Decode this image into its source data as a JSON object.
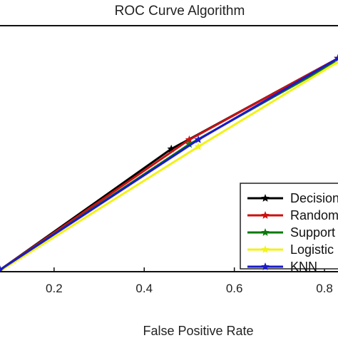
{
  "chart_data": {
    "type": "line",
    "title": "ROC Curve Algorithm",
    "xlabel": "False Positive Rate",
    "ylabel": "",
    "xlim": [
      0.08,
      0.83
    ],
    "ylim": [
      0.0,
      1.0
    ],
    "x_ticks": [
      "0.2",
      "0.4",
      "0.6",
      "0.8"
    ],
    "x_tick_values": [
      0.2,
      0.4,
      0.6,
      0.8
    ],
    "grid": false,
    "legend_position": "bottom-right",
    "series": [
      {
        "name": "Decision",
        "color": "#000000",
        "marker": "star",
        "points": [
          [
            0.08,
            0.06
          ],
          [
            0.46,
            0.58
          ],
          [
            0.83,
            0.97
          ]
        ]
      },
      {
        "name": "Random",
        "color": "#cc1111",
        "marker": "star",
        "points": [
          [
            0.08,
            0.06
          ],
          [
            0.5,
            0.62
          ],
          [
            0.83,
            0.97
          ]
        ]
      },
      {
        "name": "Support",
        "color": "#0a7a0a",
        "marker": "star",
        "points": [
          [
            0.08,
            0.06
          ],
          [
            0.5,
            0.6
          ],
          [
            0.83,
            0.96
          ]
        ]
      },
      {
        "name": "Logistic",
        "color": "#f2f21a",
        "marker": "star",
        "points": [
          [
            0.08,
            0.055
          ],
          [
            0.52,
            0.59
          ],
          [
            0.83,
            0.955
          ]
        ]
      },
      {
        "name": "KNN",
        "color": "#1a1acc",
        "marker": "star",
        "points": [
          [
            0.08,
            0.06
          ],
          [
            0.52,
            0.62
          ],
          [
            0.83,
            0.97
          ]
        ]
      }
    ]
  }
}
